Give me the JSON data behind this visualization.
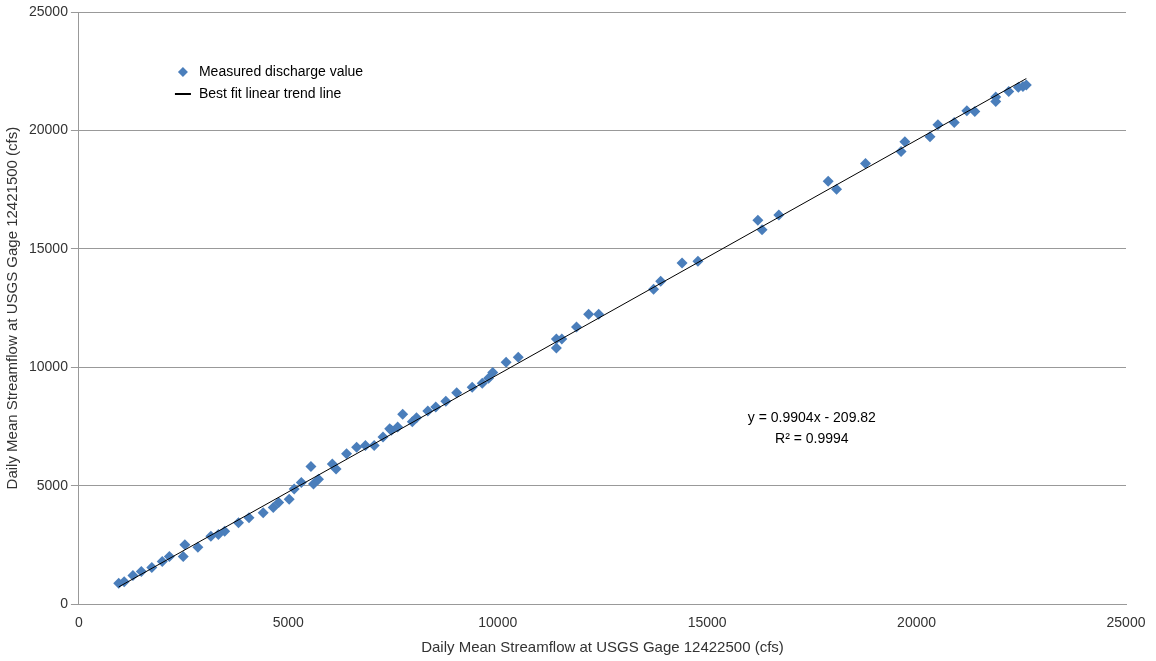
{
  "chart_data": {
    "type": "scatter",
    "xlabel": "Daily Mean Streamflow at USGS Gage 12422500 (cfs)",
    "ylabel": "Daily Mean Streamflow at USGS Gage 12421500 (cfs)",
    "xlim": [
      0,
      25000
    ],
    "ylim": [
      0,
      25000
    ],
    "xticks": [
      0,
      5000,
      10000,
      15000,
      20000,
      25000
    ],
    "yticks": [
      0,
      5000,
      10000,
      15000,
      20000,
      25000
    ],
    "grid": "y",
    "legend": "top left",
    "marker": "diamond",
    "annotations": [
      "y = 0.9904x - 209.82",
      "R² = 0.9994"
    ],
    "series": [
      {
        "name": "Measured discharge value",
        "color": "#4a7ebb",
        "x": [
          950,
          1080,
          1290,
          1490,
          1740,
          1990,
          2160,
          2490,
          2530,
          2840,
          3150,
          3330,
          3480,
          3810,
          4060,
          4400,
          4640,
          4770,
          5020,
          5140,
          5310,
          5540,
          5600,
          5720,
          6050,
          6140,
          6390,
          6630,
          6840,
          7050,
          7260,
          7420,
          7460,
          7610,
          7730,
          7960,
          8060,
          8330,
          8520,
          8760,
          9020,
          9390,
          9630,
          9780,
          9880,
          10200,
          10490,
          11400,
          11400,
          11530,
          11880,
          12170,
          12410,
          13720,
          13890,
          14400,
          14780,
          16210,
          16310,
          16710,
          17890,
          18090,
          18780,
          19630,
          19720,
          20320,
          20510,
          20900,
          21200,
          21390,
          21890,
          21890,
          22200,
          22430,
          22540,
          22620
        ],
        "values": [
          880,
          950,
          1210,
          1380,
          1550,
          1800,
          2010,
          2010,
          2510,
          2400,
          2870,
          2940,
          3080,
          3440,
          3650,
          3860,
          4080,
          4290,
          4430,
          4860,
          5140,
          5810,
          5070,
          5280,
          5920,
          5710,
          6350,
          6630,
          6700,
          6700,
          7060,
          7410,
          7340,
          7480,
          8020,
          7700,
          7870,
          8160,
          8330,
          8570,
          8930,
          9160,
          9330,
          9540,
          9780,
          10210,
          10420,
          11200,
          10820,
          11200,
          11700,
          12240,
          12240,
          13300,
          13630,
          14400,
          14480,
          16210,
          15810,
          16430,
          17850,
          17520,
          18600,
          19110,
          19520,
          19730,
          20240,
          20330,
          20830,
          20800,
          21410,
          21220,
          21640,
          21820,
          21850,
          21920
        ]
      },
      {
        "name": "Best fit linear trend line",
        "color": "#000000",
        "type": "line",
        "marker": "none",
        "x": [
          950,
          22620
        ],
        "values": [
          730,
          22190
        ]
      }
    ]
  }
}
